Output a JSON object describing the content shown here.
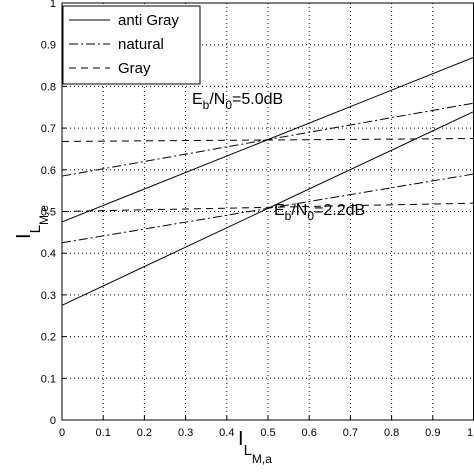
{
  "chart_data": {
    "type": "line",
    "xlabel": {
      "main": "I",
      "sub1": "L",
      "sub2": "M,a"
    },
    "ylabel": {
      "main": "I",
      "sub1": "L",
      "sub2": "M,e"
    },
    "xlim": [
      0,
      1
    ],
    "ylim": [
      0,
      1
    ],
    "xticks": [
      "0",
      "0.1",
      "0.2",
      "0.3",
      "0.4",
      "0.5",
      "0.6",
      "0.7",
      "0.8",
      "0.9",
      "1"
    ],
    "yticks": [
      "0",
      "0.1",
      "0.2",
      "0.3",
      "0.4",
      "0.5",
      "0.6",
      "0.7",
      "0.8",
      "0.9",
      "1"
    ],
    "grid": true,
    "legend": {
      "position": "top-left",
      "entries": [
        {
          "label": "anti Gray",
          "style": "solid"
        },
        {
          "label": "natural",
          "style": "dashdot"
        },
        {
          "label": "Gray",
          "style": "dashed"
        }
      ]
    },
    "annotations": [
      {
        "parts": [
          "E",
          "b",
          "/N",
          "0",
          "=5.0dB"
        ]
      },
      {
        "parts": [
          "E",
          "b",
          "/N",
          "0",
          "=2.2dB"
        ]
      }
    ],
    "series": [
      {
        "legend_ref": "anti Gray",
        "group": "5.0dB",
        "style": "solid",
        "x": [
          0,
          1
        ],
        "y": [
          0.475,
          0.87
        ]
      },
      {
        "legend_ref": "natural",
        "group": "5.0dB",
        "style": "dashdot",
        "x": [
          0,
          1
        ],
        "y": [
          0.585,
          0.76
        ]
      },
      {
        "legend_ref": "Gray",
        "group": "5.0dB",
        "style": "dashed",
        "x": [
          0,
          1
        ],
        "y": [
          0.668,
          0.675
        ]
      },
      {
        "legend_ref": "anti Gray",
        "group": "2.2dB",
        "style": "solid",
        "x": [
          0,
          1
        ],
        "y": [
          0.275,
          0.74
        ]
      },
      {
        "legend_ref": "natural",
        "group": "2.2dB",
        "style": "dashdot",
        "x": [
          0,
          1
        ],
        "y": [
          0.425,
          0.59
        ]
      },
      {
        "legend_ref": "Gray",
        "group": "2.2dB",
        "style": "dashed",
        "x": [
          0,
          1
        ],
        "y": [
          0.5,
          0.52
        ]
      }
    ]
  }
}
